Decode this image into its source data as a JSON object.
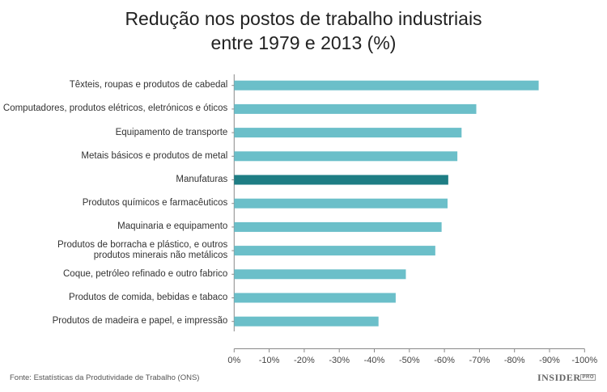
{
  "chart_data": {
    "type": "bar",
    "orientation": "horizontal",
    "title_lines": [
      "Redução nos postos de trabalho industriais",
      "entre 1979 e 2013 (%)"
    ],
    "categories": [
      [
        "Têxteis, roupas e produtos de cabedal"
      ],
      [
        "Computadores, produtos elétricos, eletrónicos e óticos"
      ],
      [
        "Equipamento de transporte"
      ],
      [
        "Metais básicos e produtos de metal"
      ],
      [
        "Manufaturas"
      ],
      [
        "Produtos químicos e farmacêuticos"
      ],
      [
        "Maquinaria e equipamento"
      ],
      [
        "Produtos de borracha e plástico, e outros",
        "produtos minerais não metálicos"
      ],
      [
        "Coque, petróleo refinado e outro fabrico"
      ],
      [
        "Produtos de comida, bebidas e tabaco"
      ],
      [
        "Produtos de madeira e papel, e impressão"
      ]
    ],
    "values": [
      -86.9,
      -69.1,
      -64.9,
      -63.7,
      -61.1,
      -60.9,
      -59.2,
      -57.4,
      -49.0,
      -46.1,
      -41.2
    ],
    "highlight_index": 4,
    "xlim": [
      0,
      -100
    ],
    "x_ticks": [
      "0%",
      "-10%",
      "-20%",
      "-30%",
      "-40%",
      "-50%",
      "-60%",
      "-70%",
      "-80%",
      "-90%",
      "-100%"
    ],
    "grid": false,
    "colors": {
      "bar": "#6bbfc9",
      "highlight": "#1e7d84",
      "axis": "#888888"
    }
  },
  "source": "Fonte: Estatísticas da Produtividade de Trabalho  (ONS)",
  "logo": {
    "main": "INSIDER",
    "sub": "PRO"
  }
}
